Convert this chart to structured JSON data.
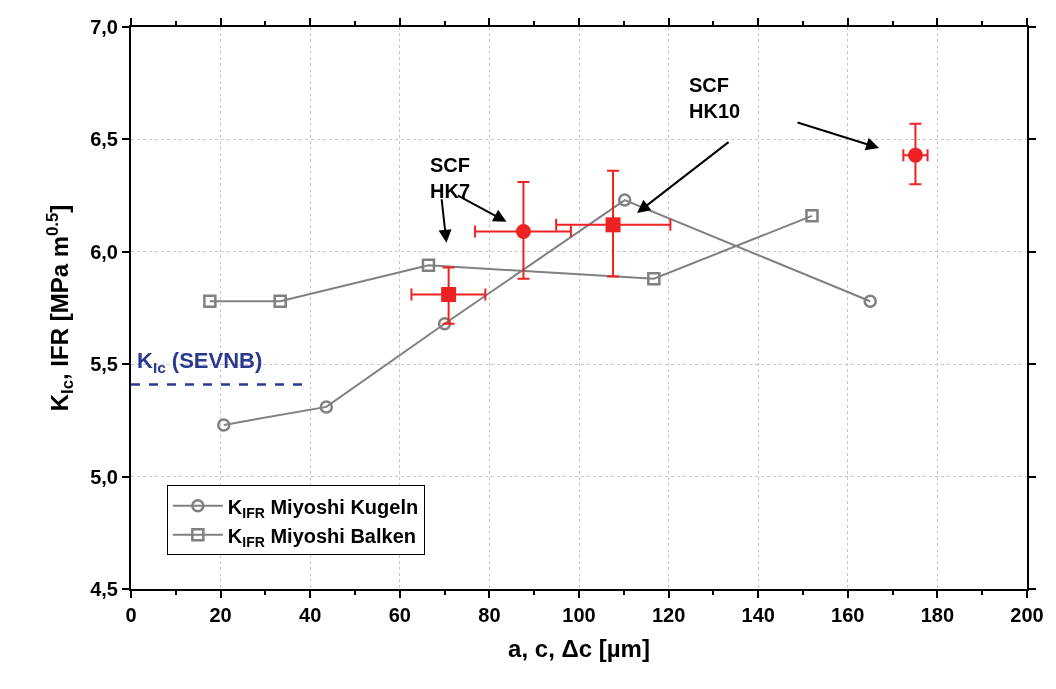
{
  "chart_data": {
    "type": "line",
    "xlabel": "a, c, Δc [µm]",
    "ylabel": "K$_{Ic}$, IFR [MPa m$^{0.5}$]",
    "xlim": [
      0,
      200
    ],
    "xticks": [
      0,
      20,
      40,
      60,
      80,
      100,
      120,
      140,
      160,
      180,
      200
    ],
    "ylim": [
      4.5,
      7.0
    ],
    "yticks": [
      {
        "value": 4.5,
        "label": "4,5"
      },
      {
        "value": 5.0,
        "label": "5,0"
      },
      {
        "value": 5.5,
        "label": "5,5"
      },
      {
        "value": 6.0,
        "label": "6,0"
      },
      {
        "value": 6.5,
        "label": "6,5"
      },
      {
        "value": 7.0,
        "label": "7,0"
      }
    ],
    "grid": true,
    "legend": "bottom left",
    "series": [
      {
        "name": "K$_{IFR}$ Miyoshi Kugeln",
        "color": "#808080",
        "marker": "circle",
        "x": [
          20.7,
          43.6,
          70.0,
          110.2,
          165.0
        ],
        "values": [
          5.23,
          5.31,
          5.68,
          6.23,
          5.78
        ]
      },
      {
        "name": "K$_{IFR}$ Miyoshi Balken",
        "color": "#808080",
        "marker": "square",
        "x": [
          17.6,
          33.3,
          66.4,
          116.7,
          152.0
        ],
        "values": [
          5.78,
          5.78,
          5.94,
          5.88,
          6.16
        ]
      },
      {
        "type": "scatter",
        "color": "#ee2222",
        "marker": "circle",
        "x": [
          87.6,
          175.1
        ],
        "values": [
          6.09,
          6.43
        ],
        "errors": [
          [
            5.88,
            6.31
          ],
          [
            6.3,
            6.57
          ]
        ],
        "xerrors": [
          [
            76.8,
            98.2
          ],
          [
            172.4,
            177.8
          ]
        ]
      },
      {
        "type": "scatter",
        "color": "#ee2222",
        "marker": "square",
        "x": [
          70.9,
          107.6
        ],
        "values": [
          5.81,
          6.12
        ],
        "errors": [
          [
            5.68,
            5.93
          ],
          [
            5.89,
            6.36
          ]
        ],
        "xerrors": [
          [
            62.6,
            79.1
          ],
          [
            94.9,
            120.4
          ]
        ]
      },
      {
        "type": "line",
        "color": "#2b3990",
        "line_style": "dashed",
        "marker": "none",
        "x": [
          0,
          38.7
        ],
        "values": [
          5.41,
          5.41
        ]
      }
    ],
    "annotations": [
      "SCF\nHK7",
      "SCF\nHK10",
      {
        "text": "K$_{Ic}$ (SEVNB)",
        "x": 0,
        "y": 5.41
      }
    ]
  }
}
